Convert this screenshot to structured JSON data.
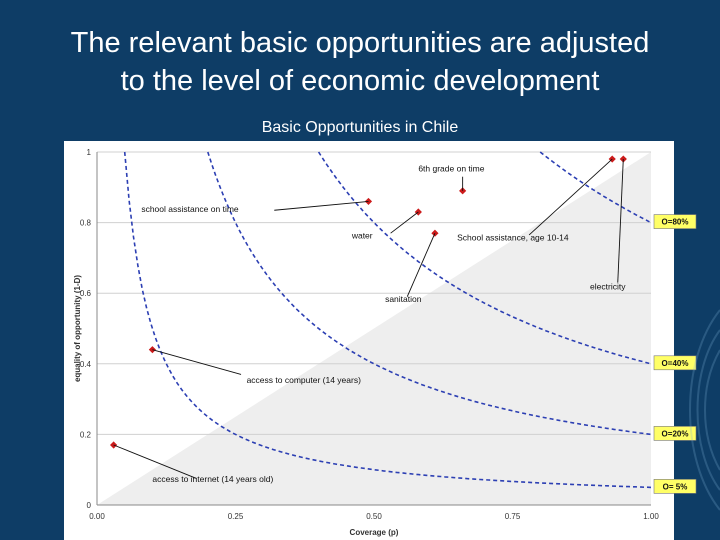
{
  "slide": {
    "title_line1": "The relevant basic opportunities are adjusted",
    "title_line2": "to the level of economic development"
  },
  "chart_data": {
    "type": "scatter",
    "title": "Basic Opportunities in Chile",
    "xlabel": "Coverage (p)",
    "ylabel": "equality of opportunity (1-D)",
    "xlim": [
      0,
      1
    ],
    "ylim": [
      0,
      1
    ],
    "x_ticks": [
      "0.00",
      "0.25",
      "0.50",
      "0.75",
      "1.00"
    ],
    "y_ticks": [
      "0",
      "0.2",
      "0.4",
      "0.6",
      "0.8",
      "1"
    ],
    "grid": "horizontal",
    "points": [
      {
        "label": "access to internet (14 years old)",
        "x": 0.03,
        "y": 0.17
      },
      {
        "label": "access to computer (14 years)",
        "x": 0.1,
        "y": 0.44
      },
      {
        "label": "school assistance on time",
        "x": 0.49,
        "y": 0.86
      },
      {
        "label": "water",
        "x": 0.58,
        "y": 0.83
      },
      {
        "label": "sanitation",
        "x": 0.61,
        "y": 0.77
      },
      {
        "label": "6th grade on time",
        "x": 0.66,
        "y": 0.89
      },
      {
        "label": "School assistance, age 10-14",
        "x": 0.93,
        "y": 0.98
      },
      {
        "label": "electricity",
        "x": 0.95,
        "y": 0.98
      }
    ],
    "iso_curves": [
      {
        "label": "O=80%",
        "O": 0.8
      },
      {
        "label": "O=40%",
        "O": 0.4
      },
      {
        "label": "O=20%",
        "O": 0.2
      },
      {
        "label": "O= 5%",
        "O": 0.05
      }
    ],
    "colors": {
      "point": "#cc1b1b",
      "curve": "#2c3fb3",
      "label_box": "#ffff66",
      "shaded": "#eeeeee"
    }
  }
}
